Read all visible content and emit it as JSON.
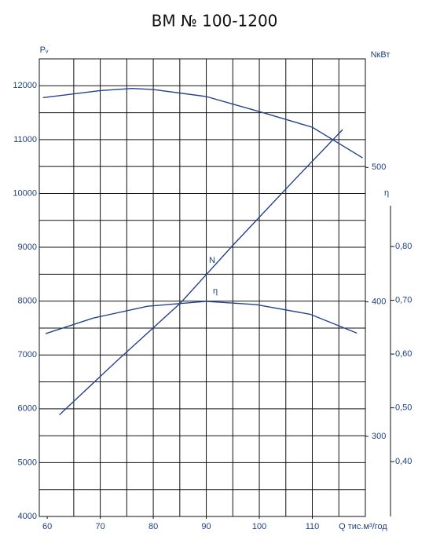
{
  "chart_data": {
    "type": "line",
    "title": "ВМ № 100-1200",
    "y_label": "Pᵥ",
    "y2_label": "NкВт",
    "y3_label": "η",
    "x_label": "Q тис.м³/год",
    "xlim": [
      58.5,
      120
    ],
    "ylim": [
      4000,
      12500
    ],
    "y2lim": [
      240.4,
      580.7
    ],
    "y3lim": [
      0.298,
      1.149
    ],
    "xticks": [
      60,
      70,
      80,
      90,
      100,
      110
    ],
    "xgrid": [
      65,
      70,
      75,
      80,
      85,
      90,
      95,
      100,
      105,
      110,
      115
    ],
    "yticks": [
      4000,
      5000,
      6000,
      7000,
      8000,
      9000,
      10000,
      11000,
      12000
    ],
    "ygrid": [
      4500,
      5000,
      5500,
      6000,
      6500,
      7000,
      7500,
      8000,
      8500,
      9000,
      9500,
      10000,
      10500,
      11000,
      11500,
      12000
    ],
    "y2ticks": [
      300,
      400,
      500
    ],
    "y3ticks": [
      {
        "value": 0.4,
        "label": "0,40"
      },
      {
        "value": 0.5,
        "label": "0,50"
      },
      {
        "value": 0.6,
        "label": "0,60"
      },
      {
        "value": 0.7,
        "label": "0,70"
      },
      {
        "value": 0.8,
        "label": "0,80"
      }
    ],
    "grid": true,
    "color": "#24438a",
    "series": [
      {
        "x": [
          59.2,
          70,
          76,
          80,
          90,
          100,
          110,
          119.5
        ],
        "values": [
          11780,
          11910,
          11950,
          11930,
          11800,
          11520,
          11230,
          10660
        ]
      },
      {
        "name": "N",
        "axis": "y2",
        "x": [
          62.3,
          73.1,
          85.1,
          95.0,
          106.7,
          115.7
        ],
        "values": [
          316,
          356,
          399,
          442,
          491,
          528
        ]
      },
      {
        "name": "η",
        "axis": "y3",
        "x": [
          59.7,
          68.7,
          78.9,
          89.9,
          99.4,
          109.6,
          118.4
        ],
        "values": [
          0.638,
          0.667,
          0.689,
          0.698,
          0.692,
          0.674,
          0.639
        ]
      }
    ]
  }
}
